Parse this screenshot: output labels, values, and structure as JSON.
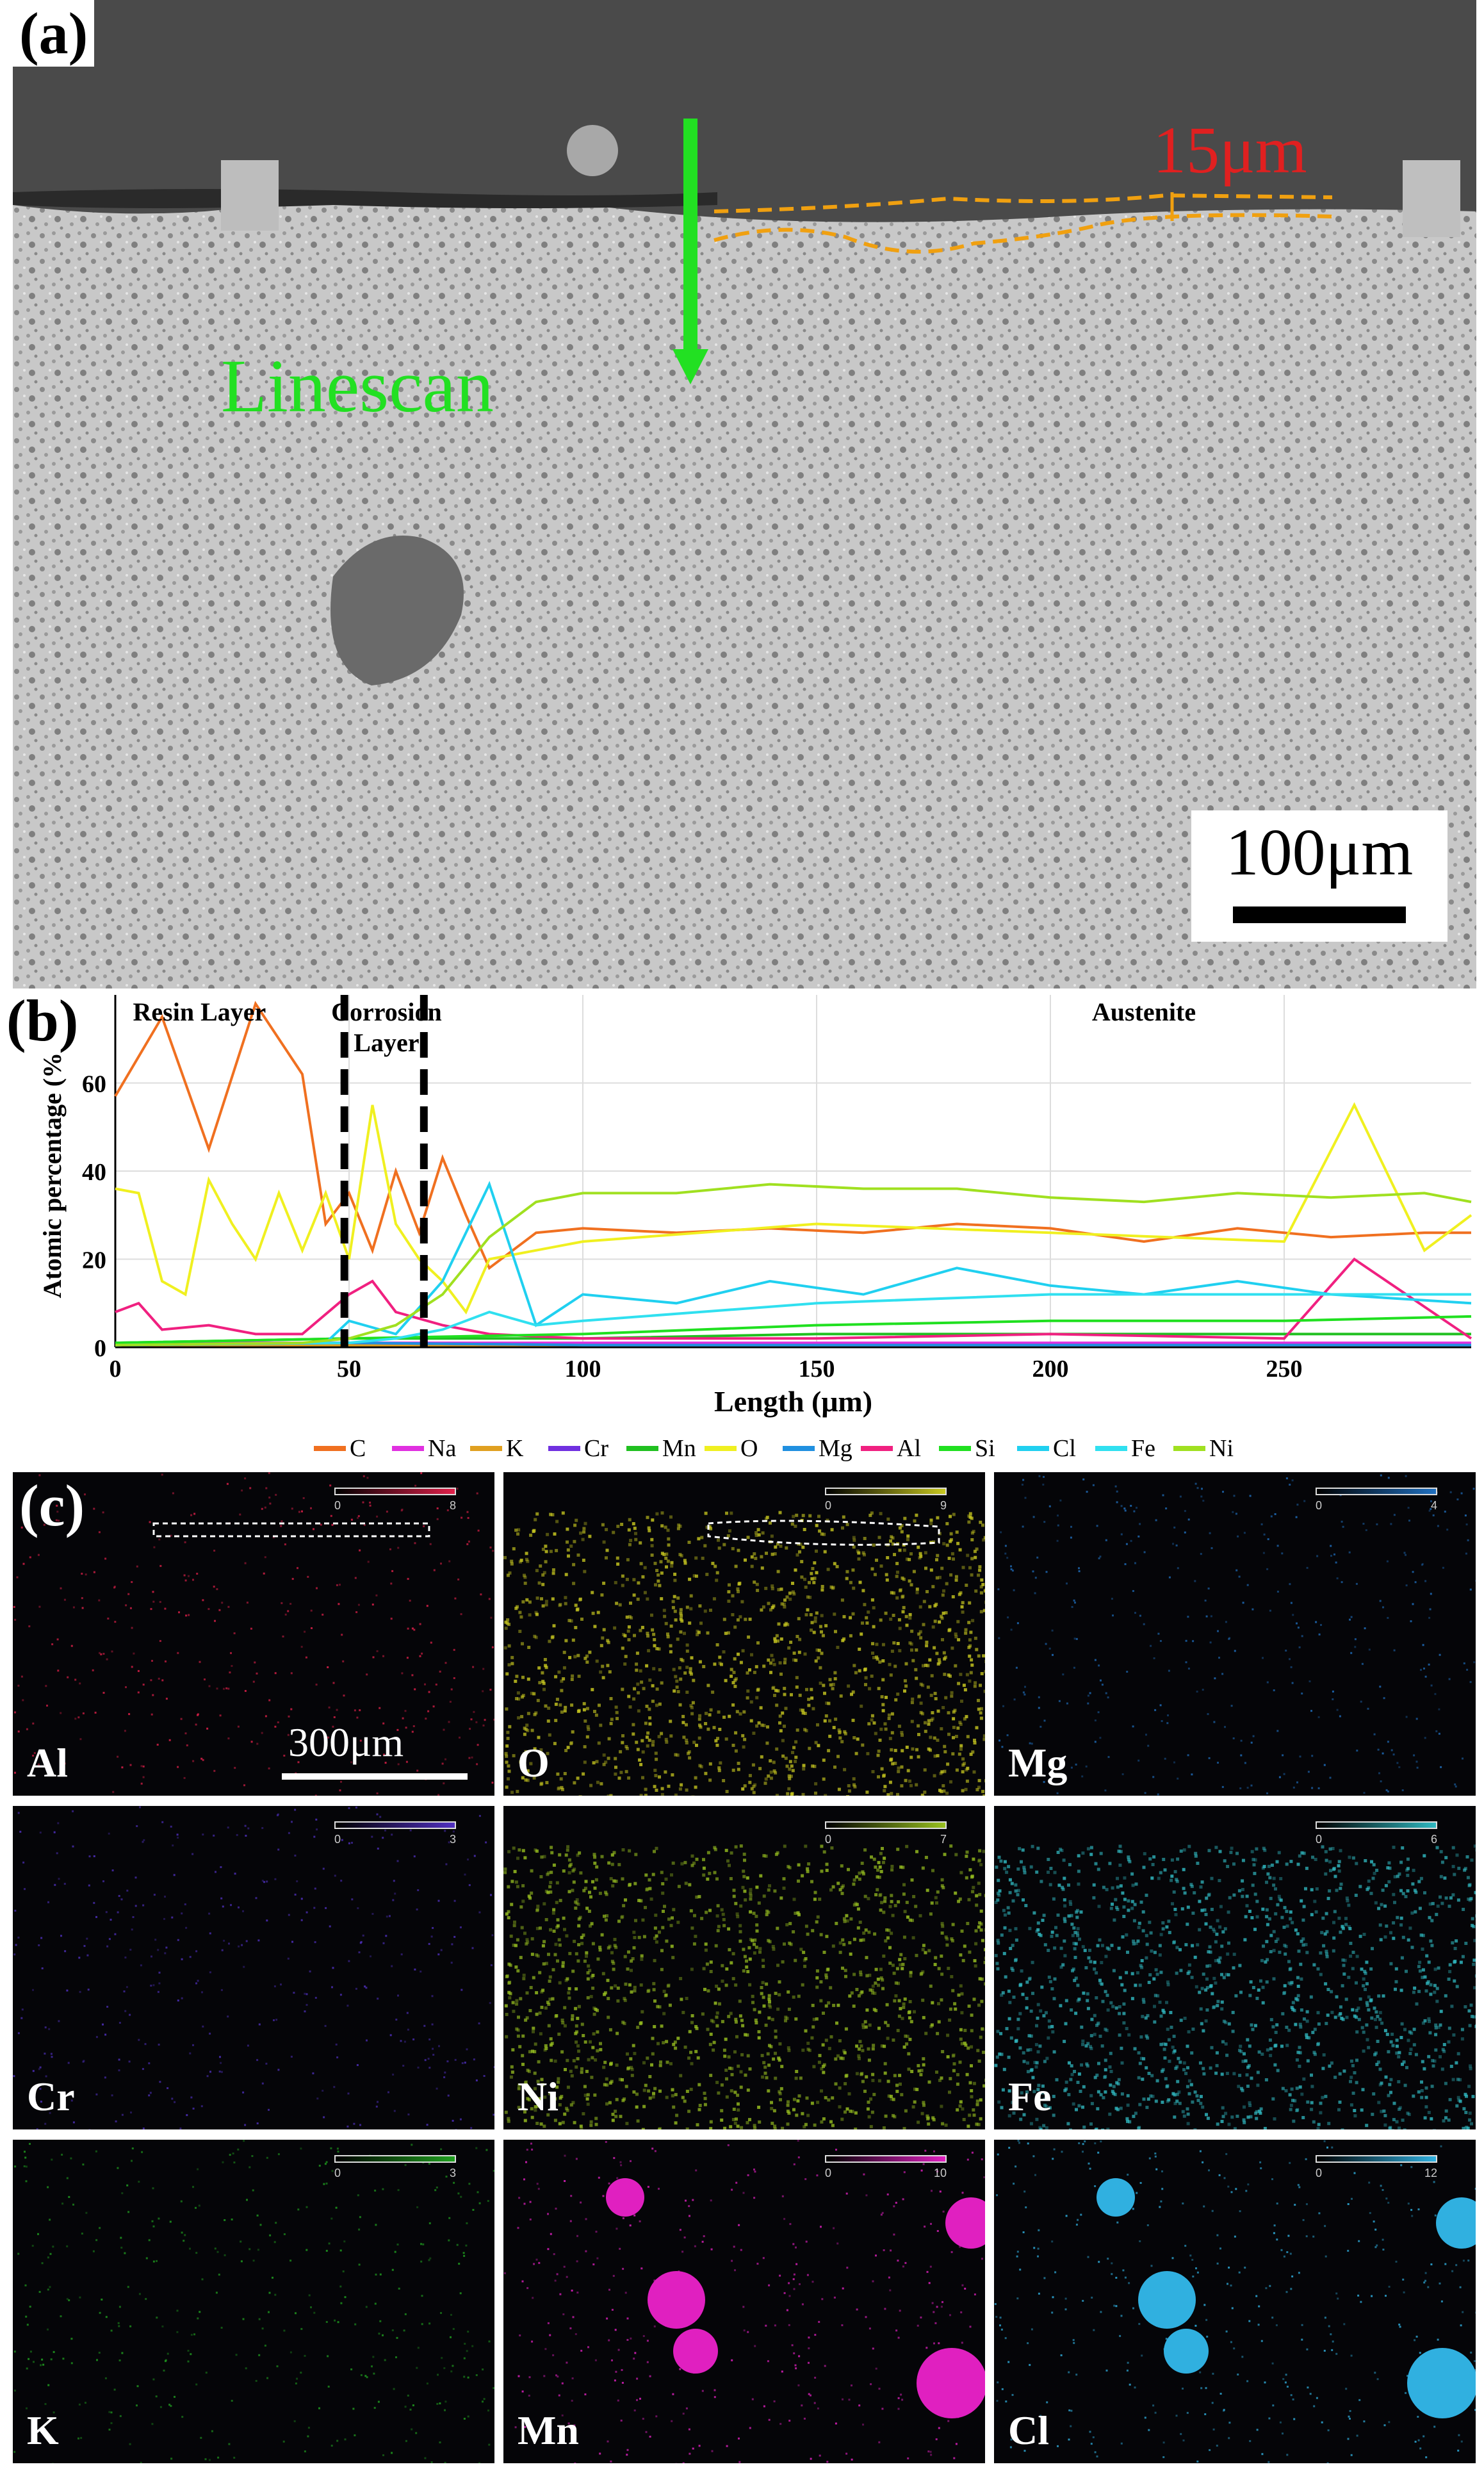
{
  "panel_a": {
    "label": "(a)",
    "linescan_label": "Linescan",
    "thickness_label": "15μm",
    "scale_label": "100μm",
    "colors": {
      "linescan": "#22e022",
      "thickness": "#e02020",
      "dash": "#f0a010"
    }
  },
  "panel_b": {
    "label": "(b)",
    "region_labels": [
      "Resin Layer",
      "Corrosion\nLayer",
      "Austenite"
    ],
    "chart_data": {
      "type": "line",
      "xlabel": "Length (μm)",
      "ylabel": "Atomic percentage (%)",
      "xlim": [
        0,
        290
      ],
      "ylim": [
        0,
        80
      ],
      "x_ticks": [
        0,
        50,
        100,
        150,
        200,
        250
      ],
      "y_ticks": [
        0,
        20,
        40,
        60
      ],
      "grid": true,
      "boundaries_x": [
        49,
        66
      ],
      "legend": [
        "C",
        "Na",
        "K",
        "Cr",
        "Mn",
        "O",
        "Mg",
        "Al",
        "Si",
        "Cl",
        "Fe",
        "Ni"
      ],
      "legend_position": "bottom",
      "series": [
        {
          "name": "C",
          "color": "#f07020",
          "x": [
            0,
            10,
            20,
            30,
            40,
            45,
            50,
            55,
            60,
            65,
            70,
            75,
            80,
            90,
            100,
            120,
            140,
            160,
            180,
            200,
            220,
            240,
            260,
            280,
            290
          ],
          "values": [
            57,
            75,
            45,
            78,
            62,
            28,
            35,
            22,
            40,
            26,
            43,
            30,
            18,
            26,
            27,
            26,
            27,
            26,
            28,
            27,
            24,
            27,
            25,
            26,
            26
          ]
        },
        {
          "name": "Na",
          "color": "#e030e0",
          "x": [
            0,
            50,
            100,
            150,
            200,
            250,
            290
          ],
          "values": [
            1,
            1,
            1,
            1,
            1,
            1,
            1
          ]
        },
        {
          "name": "K",
          "color": "#e0a020",
          "x": [
            0,
            50,
            100,
            150,
            200,
            250,
            290
          ],
          "values": [
            0.5,
            0.5,
            0.5,
            0.5,
            0.5,
            0.5,
            0.5
          ]
        },
        {
          "name": "Cr",
          "color": "#7030e0",
          "x": [
            0,
            50,
            100,
            150,
            200,
            250,
            290
          ],
          "values": [
            0.5,
            1,
            0.5,
            0.5,
            0.5,
            0.5,
            0.5
          ]
        },
        {
          "name": "Mn",
          "color": "#20c020",
          "x": [
            0,
            50,
            100,
            150,
            200,
            250,
            290
          ],
          "values": [
            1,
            2,
            2,
            3,
            3,
            3,
            3
          ]
        },
        {
          "name": "O",
          "color": "#f0f020",
          "x": [
            0,
            5,
            10,
            15,
            20,
            25,
            30,
            35,
            40,
            45,
            50,
            55,
            60,
            65,
            70,
            75,
            80,
            100,
            150,
            200,
            250,
            265,
            280,
            290
          ],
          "values": [
            36,
            35,
            15,
            12,
            38,
            28,
            20,
            35,
            22,
            35,
            20,
            55,
            28,
            20,
            15,
            8,
            20,
            24,
            28,
            26,
            24,
            55,
            22,
            30
          ]
        },
        {
          "name": "Mg",
          "color": "#2090e0",
          "x": [
            0,
            50,
            100,
            150,
            200,
            250,
            290
          ],
          "values": [
            0.5,
            1,
            0.5,
            0.5,
            0.5,
            0.5,
            0.5
          ]
        },
        {
          "name": "Al",
          "color": "#f02080",
          "x": [
            0,
            5,
            10,
            20,
            30,
            40,
            50,
            55,
            60,
            70,
            80,
            100,
            150,
            200,
            250,
            265,
            290
          ],
          "values": [
            8,
            10,
            4,
            5,
            3,
            3,
            12,
            15,
            8,
            5,
            3,
            2,
            2,
            3,
            2,
            20,
            2
          ]
        },
        {
          "name": "Si",
          "color": "#20e020",
          "x": [
            0,
            50,
            100,
            150,
            200,
            250,
            290
          ],
          "values": [
            1,
            2,
            3,
            5,
            6,
            6,
            7
          ]
        },
        {
          "name": "Cl",
          "color": "#20d0f0",
          "x": [
            0,
            45,
            50,
            60,
            70,
            80,
            90,
            100,
            120,
            140,
            160,
            180,
            200,
            220,
            240,
            260,
            290
          ],
          "values": [
            0.5,
            1,
            6,
            3,
            15,
            37,
            5,
            12,
            10,
            15,
            12,
            18,
            14,
            12,
            15,
            12,
            10
          ]
        },
        {
          "name": "Fe",
          "color": "#30e0f0",
          "x": [
            0,
            50,
            60,
            70,
            80,
            90,
            100,
            150,
            200,
            250,
            290
          ],
          "values": [
            0.5,
            1,
            2,
            4,
            8,
            5,
            6,
            10,
            12,
            12,
            12
          ]
        },
        {
          "name": "Ni",
          "color": "#a0e020",
          "x": [
            0,
            40,
            50,
            60,
            70,
            80,
            90,
            100,
            120,
            140,
            160,
            180,
            200,
            220,
            240,
            260,
            280,
            290
          ],
          "values": [
            0.5,
            1,
            2,
            5,
            12,
            25,
            33,
            35,
            35,
            37,
            36,
            36,
            34,
            33,
            35,
            34,
            35,
            33
          ]
        }
      ]
    }
  },
  "panel_c": {
    "label": "(c)",
    "scale_label": "300μm",
    "maps": [
      {
        "element": "Al",
        "scale_max": "8",
        "color": "#e0204a"
      },
      {
        "element": "O",
        "scale_max": "9",
        "color": "#c8c820"
      },
      {
        "element": "Mg",
        "scale_max": "4",
        "color": "#2070c0"
      },
      {
        "element": "Cr",
        "scale_max": "3",
        "color": "#5030c0"
      },
      {
        "element": "Ni",
        "scale_max": "7",
        "color": "#98c020"
      },
      {
        "element": "Fe",
        "scale_max": "6",
        "color": "#30b8c0"
      },
      {
        "element": "K",
        "scale_max": "3",
        "color": "#20a020"
      },
      {
        "element": "Mn",
        "scale_max": "10",
        "color": "#e020c0"
      },
      {
        "element": "Cl",
        "scale_max": "12",
        "color": "#30b0e0"
      }
    ],
    "scale_min": "0"
  }
}
